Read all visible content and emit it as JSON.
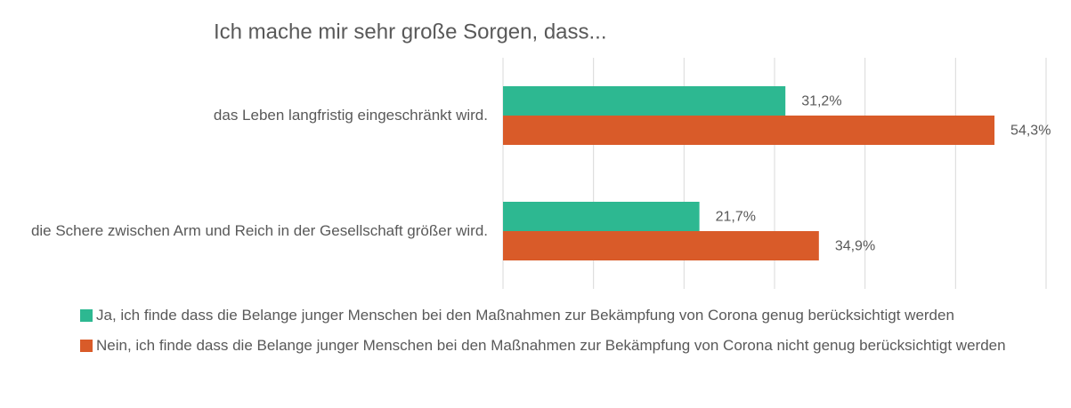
{
  "chart_data": {
    "type": "hbar",
    "title": "Ich mache mir sehr große Sorgen, dass...",
    "categories": [
      "das Leben langfristig eingeschränkt wird.",
      "die Schere zwischen Arm und Reich in der Gesellschaft größer wird."
    ],
    "series": [
      {
        "name": "Ja, ich finde dass die Belange junger Menschen bei den Maßnahmen zur Bekämpfung von Corona genug berücksichtigt werden",
        "color": "#2db891",
        "values": [
          31.2,
          21.7
        ],
        "value_labels": [
          "31,2%",
          "21,7%"
        ]
      },
      {
        "name": "Nein, ich finde dass die Belange junger Menschen bei den Maßnahmen zur Bekämpfung von Corona nicht genug berücksichtigt werden",
        "color": "#d95b29",
        "values": [
          54.3,
          34.9
        ],
        "value_labels": [
          "54,3%",
          "34,9%"
        ]
      }
    ],
    "xlim": [
      0,
      60
    ],
    "xticks": [
      0,
      10,
      20,
      30,
      40,
      50,
      60
    ],
    "grid": true,
    "legend": "bottom"
  }
}
